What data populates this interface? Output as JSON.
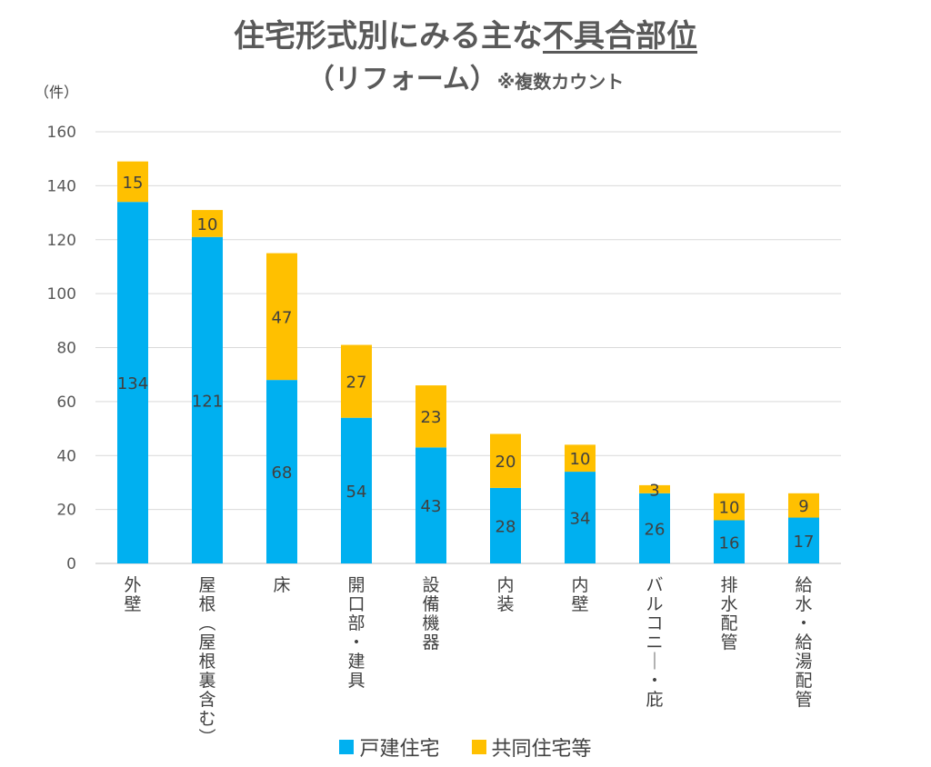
{
  "chart_data": {
    "type": "bar",
    "stacked": true,
    "title_main": "住宅形式別にみる主な",
    "title_underlined": "不具合部位",
    "subtitle_main": "（リフォーム）",
    "subtitle_note": "※複数カウント",
    "ylabel": "（件）",
    "ylim": [
      0,
      160
    ],
    "yticks": [
      "0",
      "20",
      "40",
      "60",
      "80",
      "100",
      "120",
      "140",
      "160"
    ],
    "grid": true,
    "legend_position": "bottom",
    "categories": [
      "外壁",
      "屋根（屋根裏含む）",
      "床",
      "開口部・建具",
      "設備機器",
      "内装",
      "内壁",
      "バルコニー・庇",
      "排水配管",
      "給水・給湯配管"
    ],
    "series": [
      {
        "name": "戸建住宅",
        "color": "#00B0F0",
        "values": [
          134,
          121,
          68,
          54,
          43,
          28,
          34,
          26,
          16,
          17
        ]
      },
      {
        "name": "共同住宅等",
        "color": "#FFC000",
        "values": [
          15,
          10,
          47,
          27,
          23,
          20,
          10,
          3,
          10,
          9
        ]
      }
    ]
  }
}
